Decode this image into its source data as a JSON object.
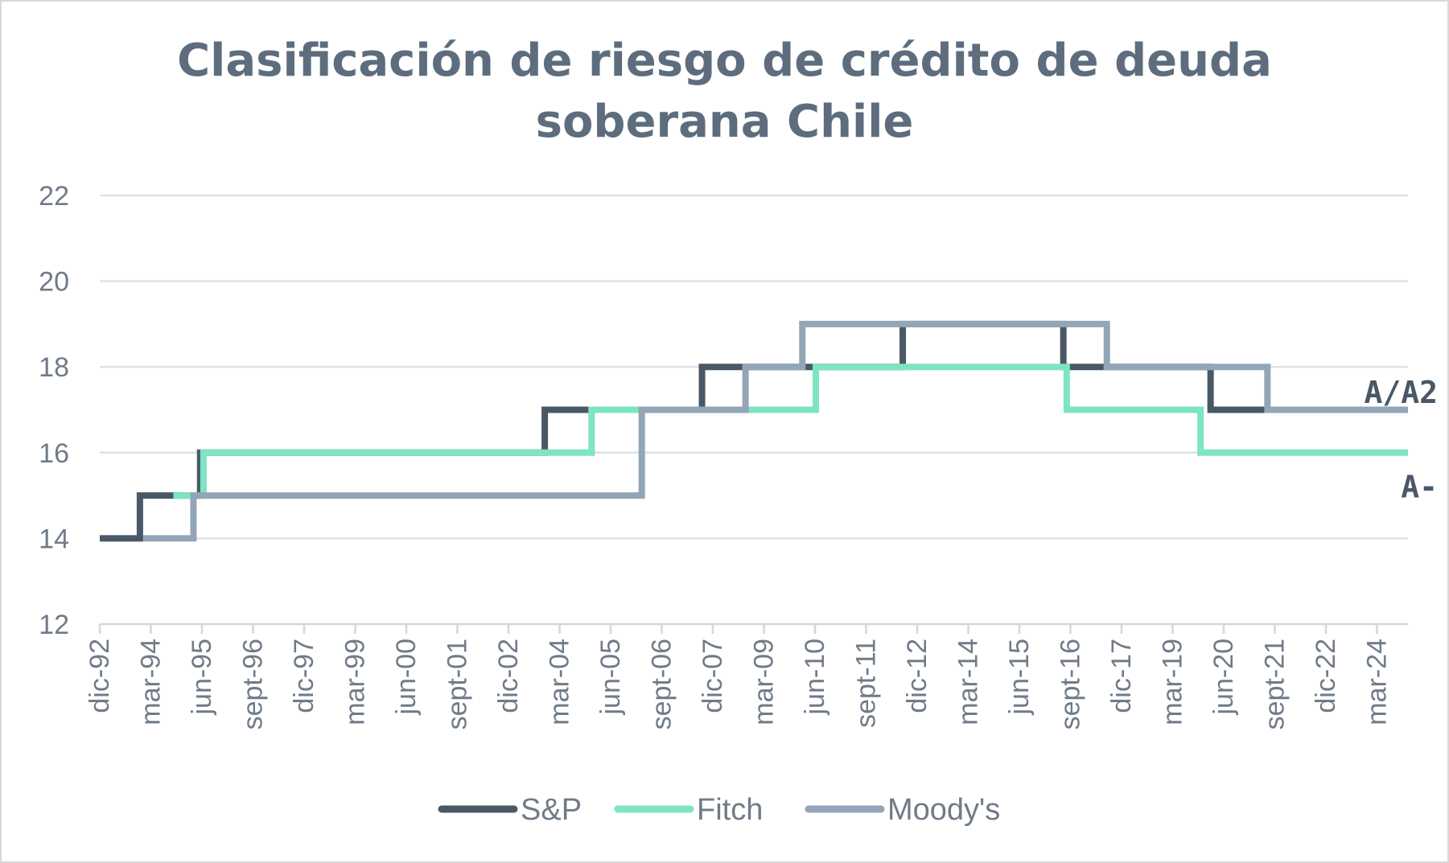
{
  "chart_data": {
    "type": "line",
    "title": [
      "Clasificación de riesgo de crédito de deuda",
      "soberana Chile"
    ],
    "xlabel": "",
    "ylabel": "",
    "ylim": [
      12,
      22
    ],
    "yticks": [
      12,
      14,
      16,
      18,
      20,
      22
    ],
    "x_range": [
      "1992-12",
      "2025-07"
    ],
    "xtick_labels": [
      "dic-92",
      "mar-94",
      "jun-95",
      "sept-96",
      "dic-97",
      "mar-99",
      "jun-00",
      "sept-01",
      "dic-02",
      "mar-04",
      "jun-05",
      "sept-06",
      "dic-07",
      "mar-09",
      "jun-10",
      "sept-11",
      "dic-12",
      "mar-14",
      "jun-15",
      "sept-16",
      "dic-17",
      "mar-19",
      "jun-20",
      "sept-21",
      "dic-22",
      "mar-24"
    ],
    "grid": true,
    "legend_position": "bottom",
    "step_style": "post",
    "series": [
      {
        "name": "S&P",
        "color": "#4a5866",
        "points": [
          [
            "1992-12",
            14
          ],
          [
            "1993-12",
            15
          ],
          [
            "1995-06",
            16
          ],
          [
            "2004-01",
            17
          ],
          [
            "2007-12",
            18
          ],
          [
            "2012-12",
            19
          ],
          [
            "2016-12",
            18
          ],
          [
            "2020-08",
            17
          ],
          [
            "2025-07",
            17
          ]
        ]
      },
      {
        "name": "Fitch",
        "color": "#7de5c0",
        "points": [
          [
            "1994-10",
            15
          ],
          [
            "1995-07",
            16
          ],
          [
            "2005-03",
            17
          ],
          [
            "2009-03",
            17
          ],
          [
            "2010-10",
            18
          ],
          [
            "2017-01",
            17
          ],
          [
            "2020-05",
            16
          ],
          [
            "2025-07",
            16
          ]
        ]
      },
      {
        "name": "Moody's",
        "color": "#93a6b8",
        "points": [
          [
            "1994-01",
            14
          ],
          [
            "1995-04",
            15
          ],
          [
            "2006-06",
            17
          ],
          [
            "2009-01",
            18
          ],
          [
            "2010-06",
            19
          ],
          [
            "2018-01",
            18
          ],
          [
            "2022-01",
            17
          ],
          [
            "2025-07",
            17
          ]
        ]
      }
    ],
    "annotations": [
      {
        "text": "A/A2",
        "value": 17.4
      },
      {
        "text": "A-",
        "value": 15.2
      }
    ]
  }
}
